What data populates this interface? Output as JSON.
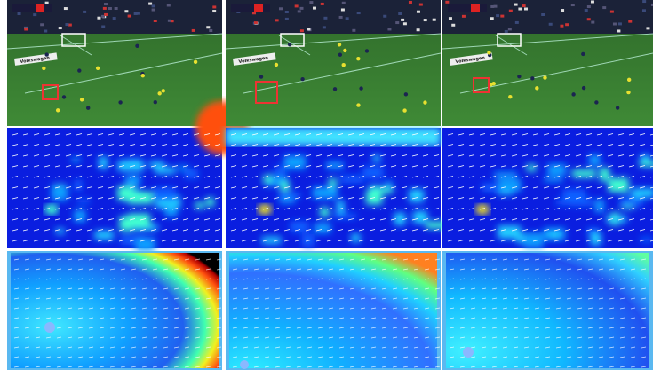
{
  "frames": [
    {
      "banner": "Volkswagen"
    },
    {
      "banner": "Volkswagen"
    },
    {
      "banner": "Volkswagen"
    }
  ]
}
